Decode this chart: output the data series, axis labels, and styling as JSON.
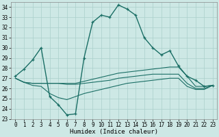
{
  "background_color": "#cde8e5",
  "grid_color": "#aacfcb",
  "line_color": "#1a6e65",
  "xlabel": "Humidex (Indice chaleur)",
  "xlim_min": -0.5,
  "xlim_max": 23.5,
  "ylim_min": 23.0,
  "ylim_max": 34.5,
  "xticks": [
    0,
    1,
    2,
    3,
    4,
    5,
    6,
    7,
    8,
    9,
    10,
    11,
    12,
    13,
    14,
    15,
    16,
    17,
    18,
    19,
    20,
    21,
    22,
    23
  ],
  "yticks": [
    23,
    24,
    25,
    26,
    27,
    28,
    29,
    30,
    31,
    32,
    33,
    34
  ],
  "curve_x": [
    0,
    1,
    2,
    3,
    4,
    5,
    6,
    7,
    8,
    9,
    10,
    11,
    12,
    13,
    14,
    15,
    16,
    17,
    18,
    19,
    20,
    21,
    22,
    23
  ],
  "curve_y": [
    27.2,
    27.9,
    28.8,
    30.0,
    25.2,
    24.4,
    23.4,
    23.5,
    29.0,
    32.5,
    33.2,
    33.0,
    34.2,
    33.8,
    33.2,
    31.0,
    30.0,
    29.3,
    29.7,
    28.2,
    27.2,
    26.8,
    26.2,
    26.3
  ],
  "flat1_x": [
    0,
    1,
    2,
    3,
    4,
    5,
    6,
    7,
    8,
    9,
    10,
    11,
    12,
    13,
    14,
    15,
    16,
    17,
    18,
    19,
    20,
    21,
    22,
    23
  ],
  "flat1_y": [
    27.0,
    26.6,
    26.5,
    26.5,
    26.5,
    26.5,
    26.5,
    26.5,
    26.7,
    26.9,
    27.1,
    27.3,
    27.5,
    27.6,
    27.7,
    27.8,
    27.9,
    28.0,
    28.1,
    28.1,
    27.2,
    26.2,
    26.2,
    26.3
  ],
  "flat2_x": [
    0,
    1,
    2,
    3,
    4,
    5,
    6,
    7,
    8,
    9,
    10,
    11,
    12,
    13,
    14,
    15,
    16,
    17,
    18,
    19,
    20,
    21,
    22,
    23
  ],
  "flat2_y": [
    27.0,
    26.6,
    26.5,
    26.5,
    26.5,
    26.5,
    26.4,
    26.4,
    26.5,
    26.6,
    26.7,
    26.8,
    27.0,
    27.1,
    27.2,
    27.3,
    27.4,
    27.4,
    27.4,
    27.4,
    26.5,
    26.0,
    26.0,
    26.3
  ],
  "flat3_x": [
    0,
    1,
    2,
    3,
    4,
    5,
    6,
    7,
    8,
    9,
    10,
    11,
    12,
    13,
    14,
    15,
    16,
    17,
    18,
    19,
    20,
    21,
    22,
    23
  ],
  "flat3_y": [
    27.0,
    26.6,
    26.3,
    26.2,
    25.5,
    25.1,
    24.9,
    25.2,
    25.5,
    25.7,
    25.9,
    26.1,
    26.3,
    26.5,
    26.6,
    26.7,
    26.8,
    26.9,
    27.0,
    27.0,
    26.2,
    25.9,
    25.9,
    26.3
  ],
  "tick_fontsize": 5.5,
  "xlabel_fontsize": 6.5,
  "lw_main": 1.0,
  "lw_flat": 0.8,
  "marker_size": 3.5
}
